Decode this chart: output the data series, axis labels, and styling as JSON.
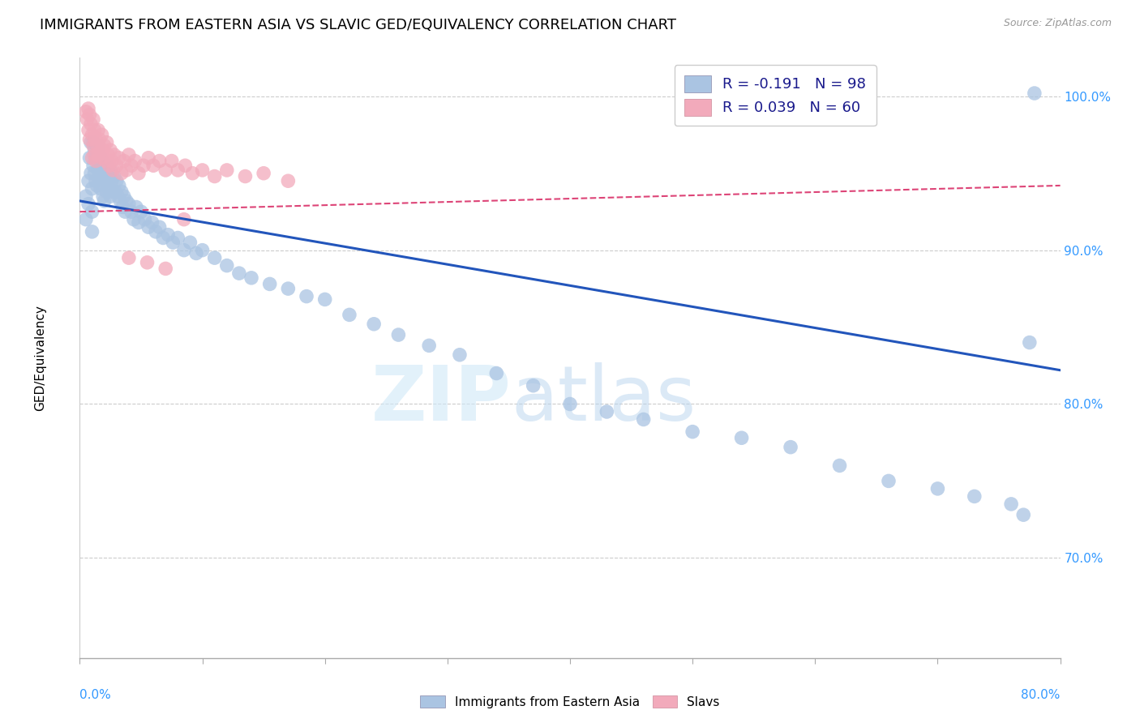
{
  "title": "IMMIGRANTS FROM EASTERN ASIA VS SLAVIC GED/EQUIVALENCY CORRELATION CHART",
  "source": "Source: ZipAtlas.com",
  "ylabel": "GED/Equivalency",
  "legend_blue_label": "R = -0.191   N = 98",
  "legend_pink_label": "R = 0.039   N = 60",
  "legend_label_blue": "Immigrants from Eastern Asia",
  "legend_label_pink": "Slavs",
  "blue_color": "#aac4e2",
  "pink_color": "#f2aabb",
  "trend_blue_color": "#2255bb",
  "trend_pink_color": "#dd4477",
  "right_axis_color": "#3399ff",
  "label_color_dark": "#1a1a8c",
  "xmin": 0.0,
  "xmax": 0.8,
  "ymin": 0.635,
  "ymax": 1.025,
  "y_ticks": [
    0.7,
    0.8,
    0.9,
    1.0
  ],
  "y_tick_labels": [
    "70.0%",
    "80.0%",
    "90.0%",
    "100.0%"
  ],
  "blue_x": [
    0.005,
    0.005,
    0.007,
    0.007,
    0.008,
    0.009,
    0.009,
    0.01,
    0.01,
    0.01,
    0.011,
    0.011,
    0.012,
    0.012,
    0.013,
    0.013,
    0.014,
    0.014,
    0.015,
    0.015,
    0.016,
    0.016,
    0.017,
    0.017,
    0.018,
    0.018,
    0.019,
    0.019,
    0.02,
    0.02,
    0.021,
    0.022,
    0.022,
    0.023,
    0.024,
    0.025,
    0.025,
    0.026,
    0.027,
    0.028,
    0.029,
    0.03,
    0.031,
    0.032,
    0.033,
    0.034,
    0.035,
    0.036,
    0.037,
    0.038,
    0.04,
    0.042,
    0.044,
    0.046,
    0.048,
    0.05,
    0.053,
    0.056,
    0.059,
    0.062,
    0.065,
    0.068,
    0.072,
    0.076,
    0.08,
    0.085,
    0.09,
    0.095,
    0.1,
    0.11,
    0.12,
    0.13,
    0.14,
    0.155,
    0.17,
    0.185,
    0.2,
    0.22,
    0.24,
    0.26,
    0.285,
    0.31,
    0.34,
    0.37,
    0.4,
    0.43,
    0.46,
    0.5,
    0.54,
    0.58,
    0.62,
    0.66,
    0.7,
    0.73,
    0.76,
    0.77,
    0.775,
    0.779
  ],
  "blue_y": [
    0.935,
    0.92,
    0.945,
    0.93,
    0.96,
    0.97,
    0.95,
    0.94,
    0.925,
    0.912,
    0.97,
    0.955,
    0.965,
    0.95,
    0.96,
    0.945,
    0.958,
    0.942,
    0.968,
    0.952,
    0.962,
    0.948,
    0.955,
    0.94,
    0.958,
    0.943,
    0.95,
    0.935,
    0.948,
    0.932,
    0.945,
    0.955,
    0.938,
    0.948,
    0.94,
    0.952,
    0.935,
    0.945,
    0.938,
    0.948,
    0.938,
    0.945,
    0.935,
    0.942,
    0.932,
    0.938,
    0.928,
    0.935,
    0.925,
    0.932,
    0.93,
    0.925,
    0.92,
    0.928,
    0.918,
    0.925,
    0.92,
    0.915,
    0.918,
    0.912,
    0.915,
    0.908,
    0.91,
    0.905,
    0.908,
    0.9,
    0.905,
    0.898,
    0.9,
    0.895,
    0.89,
    0.885,
    0.882,
    0.878,
    0.875,
    0.87,
    0.868,
    0.858,
    0.852,
    0.845,
    0.838,
    0.832,
    0.82,
    0.812,
    0.8,
    0.795,
    0.79,
    0.782,
    0.778,
    0.772,
    0.76,
    0.75,
    0.745,
    0.74,
    0.735,
    0.728,
    0.84,
    1.002
  ],
  "pink_x": [
    0.005,
    0.006,
    0.007,
    0.007,
    0.008,
    0.008,
    0.009,
    0.01,
    0.01,
    0.011,
    0.011,
    0.012,
    0.012,
    0.013,
    0.013,
    0.014,
    0.015,
    0.015,
    0.016,
    0.017,
    0.018,
    0.018,
    0.019,
    0.02,
    0.021,
    0.022,
    0.023,
    0.024,
    0.025,
    0.026,
    0.027,
    0.028,
    0.03,
    0.032,
    0.034,
    0.036,
    0.038,
    0.04,
    0.042,
    0.045,
    0.048,
    0.052,
    0.056,
    0.06,
    0.065,
    0.07,
    0.075,
    0.08,
    0.086,
    0.092,
    0.1,
    0.11,
    0.12,
    0.135,
    0.15,
    0.17,
    0.04,
    0.055,
    0.07,
    0.085
  ],
  "pink_y": [
    0.99,
    0.985,
    0.992,
    0.978,
    0.988,
    0.972,
    0.982,
    0.975,
    0.96,
    0.985,
    0.968,
    0.978,
    0.962,
    0.972,
    0.958,
    0.968,
    0.978,
    0.962,
    0.972,
    0.965,
    0.975,
    0.96,
    0.965,
    0.968,
    0.958,
    0.97,
    0.962,
    0.955,
    0.965,
    0.958,
    0.952,
    0.962,
    0.955,
    0.96,
    0.95,
    0.958,
    0.952,
    0.962,
    0.955,
    0.958,
    0.95,
    0.955,
    0.96,
    0.955,
    0.958,
    0.952,
    0.958,
    0.952,
    0.955,
    0.95,
    0.952,
    0.948,
    0.952,
    0.948,
    0.95,
    0.945,
    0.895,
    0.892,
    0.888,
    0.92
  ],
  "blue_trend_x": [
    0.0,
    0.8
  ],
  "blue_trend_y": [
    0.932,
    0.822
  ],
  "pink_trend_x": [
    0.0,
    0.8
  ],
  "pink_trend_y": [
    0.925,
    0.942
  ],
  "watermark_zip": "ZIP",
  "watermark_atlas": "atlas",
  "background_color": "#ffffff",
  "grid_color": "#cccccc",
  "title_fontsize": 13,
  "axis_label_fontsize": 11,
  "tick_fontsize": 10,
  "legend_fontsize": 13
}
